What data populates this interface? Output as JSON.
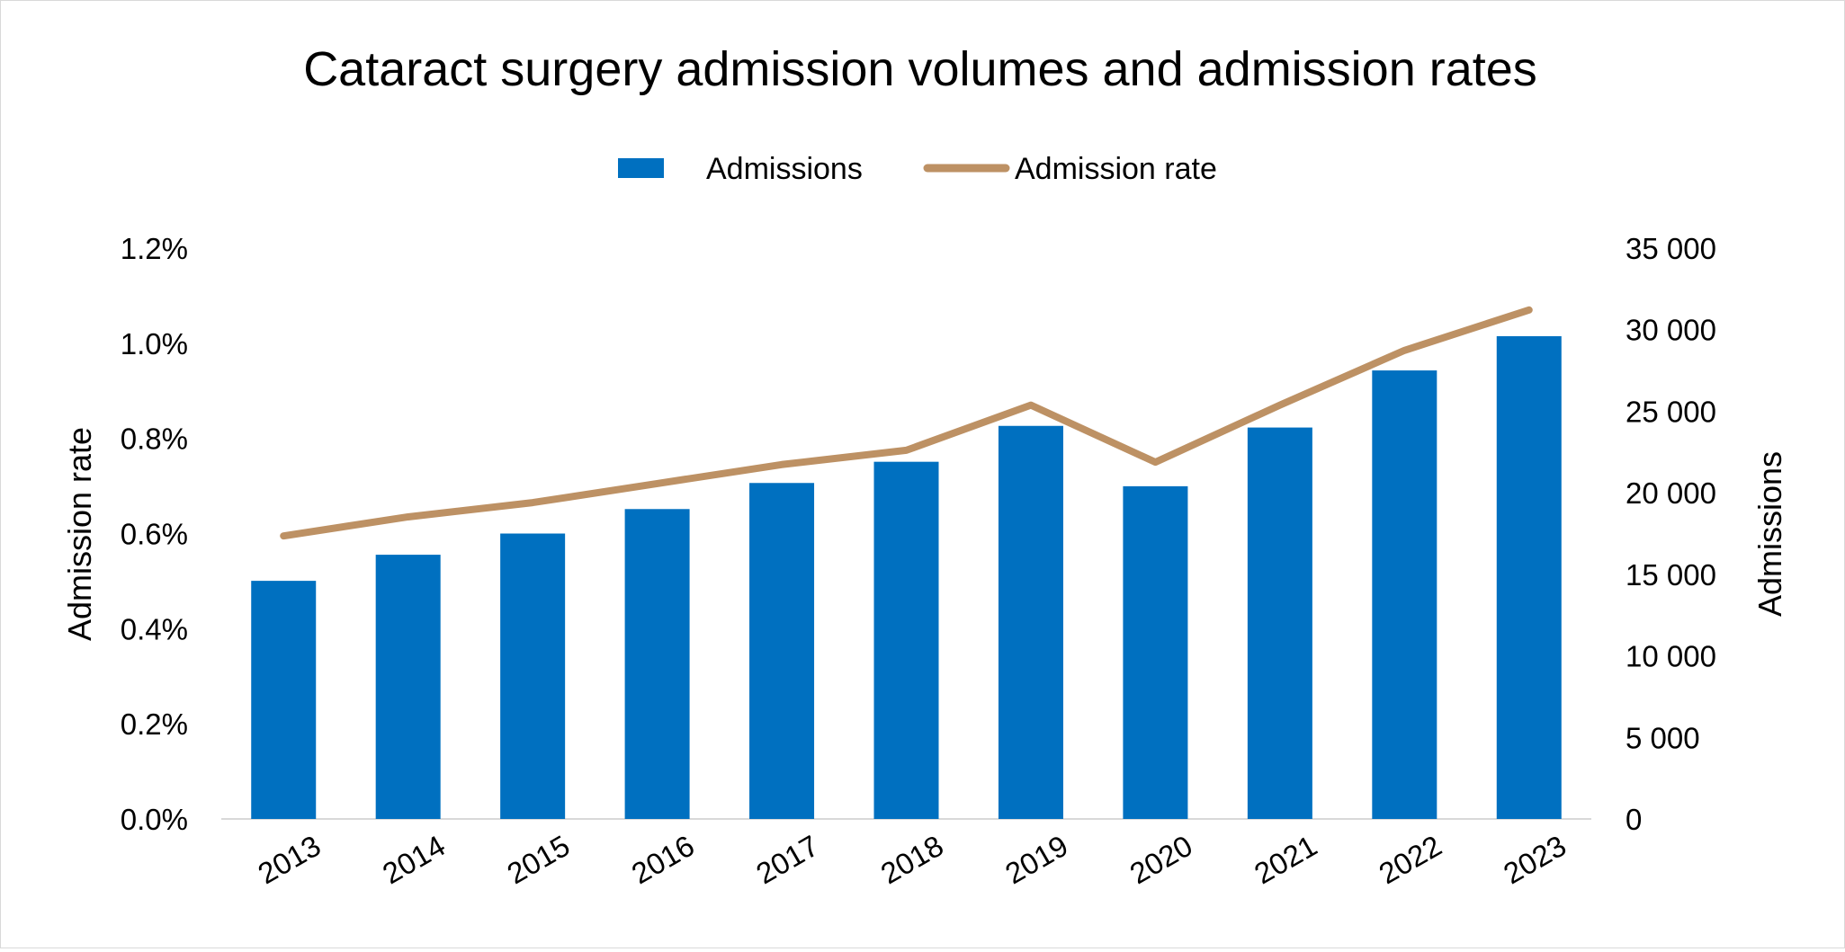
{
  "chart_data": {
    "type": "bar",
    "title": "Cataract surgery admission volumes and admission rates",
    "categories": [
      "2013",
      "2014",
      "2015",
      "2016",
      "2017",
      "2018",
      "2019",
      "2020",
      "2021",
      "2022",
      "2023"
    ],
    "series": [
      {
        "name": "Admissions",
        "type": "bar",
        "axis": "right",
        "color": "#0070C0",
        "values": [
          14600,
          16200,
          17500,
          19000,
          20600,
          21900,
          24100,
          20400,
          24000,
          27500,
          29600
        ]
      },
      {
        "name": "Admission rate",
        "type": "line",
        "axis": "left",
        "color": "#BD9164",
        "values": [
          0.00595,
          0.00635,
          0.00665,
          0.00705,
          0.00745,
          0.00775,
          0.0087,
          0.0075,
          0.0087,
          0.00985,
          0.0107
        ]
      }
    ],
    "y_left": {
      "label": "Admission rate",
      "range": [
        0,
        0.012
      ],
      "ticks": [
        0,
        0.002,
        0.004,
        0.006,
        0.008,
        0.01,
        0.012
      ],
      "tick_labels": [
        "0.0%",
        "0.2%",
        "0.4%",
        "0.6%",
        "0.8%",
        "1.0%",
        "1.2%"
      ]
    },
    "y_right": {
      "label": "Admissions",
      "range": [
        0,
        35000
      ],
      "ticks": [
        0,
        5000,
        10000,
        15000,
        20000,
        25000,
        30000,
        35000
      ],
      "tick_labels": [
        "0",
        "5 000",
        "10 000",
        "15 000",
        "20 000",
        "25 000",
        "30 000",
        "35 000"
      ]
    },
    "legend": {
      "position": "top",
      "entries": [
        "Admissions",
        "Admission rate"
      ]
    },
    "grid": false
  }
}
